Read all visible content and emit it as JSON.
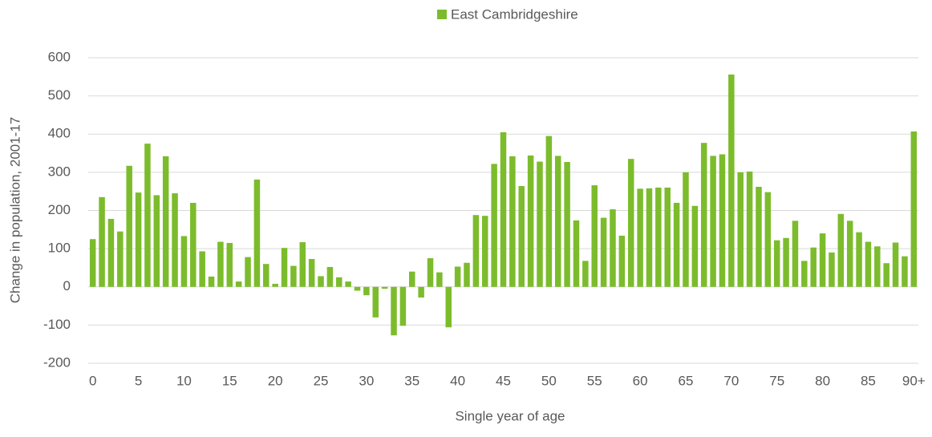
{
  "chart_data": {
    "type": "bar",
    "x_label": "Single year of age",
    "y_label": "Change in population, 2001-17",
    "categories": [
      "0",
      null,
      null,
      null,
      null,
      "5",
      null,
      null,
      null,
      null,
      "10",
      null,
      null,
      null,
      null,
      "15",
      null,
      null,
      null,
      null,
      "20",
      null,
      null,
      null,
      null,
      "25",
      null,
      null,
      null,
      null,
      "30",
      null,
      null,
      null,
      null,
      "35",
      null,
      null,
      null,
      null,
      "40",
      null,
      null,
      null,
      null,
      "45",
      null,
      null,
      null,
      null,
      "50",
      null,
      null,
      null,
      null,
      "55",
      null,
      null,
      null,
      null,
      "60",
      null,
      null,
      null,
      null,
      "65",
      null,
      null,
      null,
      null,
      "70",
      null,
      null,
      null,
      null,
      "75",
      null,
      null,
      null,
      null,
      "80",
      null,
      null,
      null,
      null,
      "85",
      null,
      null,
      null,
      null,
      "90+"
    ],
    "series": [
      {
        "name": "East Cambridgeshire",
        "color": "#7cbc2c",
        "values": [
          125,
          235,
          178,
          145,
          317,
          247,
          375,
          240,
          342,
          245,
          133,
          220,
          93,
          27,
          118,
          115,
          14,
          78,
          281,
          60,
          8,
          102,
          55,
          117,
          73,
          28,
          52,
          25,
          14,
          -10,
          -22,
          -80,
          -5,
          -127,
          -102,
          40,
          -28,
          75,
          38,
          -106,
          53,
          63,
          188,
          186,
          322,
          405,
          342,
          264,
          344,
          328,
          395,
          343,
          327,
          174,
          68,
          266,
          181,
          203,
          134,
          335,
          257,
          258,
          260,
          260,
          220,
          300,
          212,
          377,
          343,
          347,
          556,
          300,
          302,
          262,
          248,
          122,
          128,
          173,
          68,
          103,
          140,
          90,
          191,
          173,
          143,
          118,
          106,
          62,
          116,
          80,
          407
        ]
      }
    ],
    "ylim": [
      -200,
      600
    ],
    "yticks": [
      -200,
      -100,
      0,
      100,
      200,
      300,
      400,
      500,
      600
    ],
    "grid": true,
    "legend": "top"
  }
}
